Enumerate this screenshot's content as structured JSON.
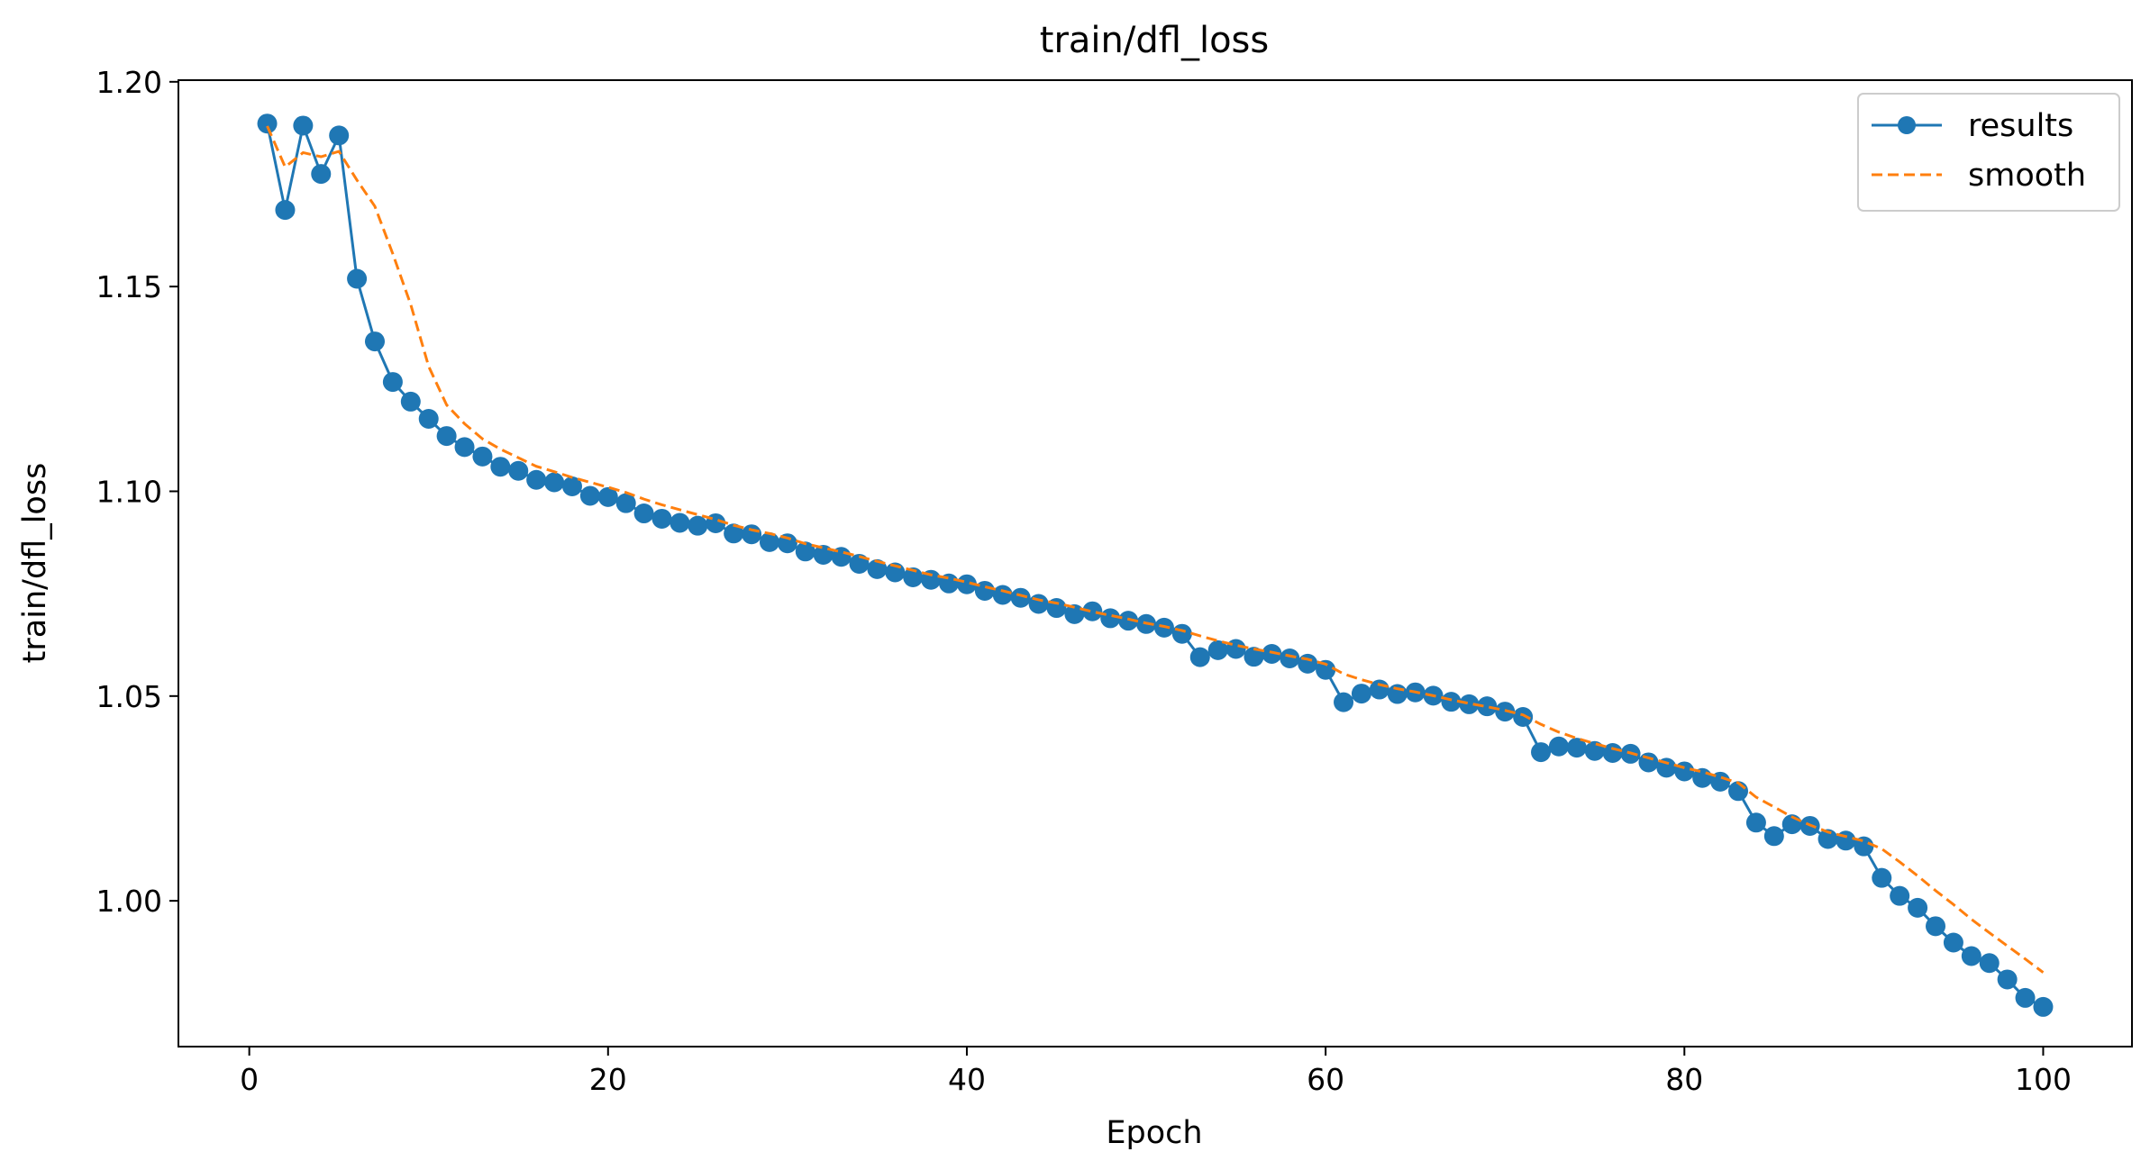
{
  "chart_data": {
    "type": "line",
    "title": "train/dfl_loss",
    "xlabel": "Epoch",
    "ylabel": "train/dfl_loss",
    "xlim": [
      -3.95,
      104.95
    ],
    "ylim": [
      0.9644,
      1.2004
    ],
    "xticks": [
      0,
      20,
      40,
      60,
      80,
      100
    ],
    "xtick_labels": [
      "0",
      "20",
      "40",
      "60",
      "80",
      "100"
    ],
    "yticks": [
      1.0,
      1.05,
      1.1,
      1.15,
      1.2
    ],
    "ytick_labels": [
      "1.00",
      "1.05",
      "1.10",
      "1.15",
      "1.20"
    ],
    "grid": false,
    "legend_position": "top-right",
    "series": [
      {
        "name": "results",
        "style": "solid line with circle markers",
        "color": "#1f77b4",
        "x": [
          1,
          2,
          3,
          4,
          5,
          6,
          7,
          8,
          9,
          10,
          11,
          12,
          13,
          14,
          15,
          16,
          17,
          18,
          19,
          20,
          21,
          22,
          23,
          24,
          25,
          26,
          27,
          28,
          29,
          30,
          31,
          32,
          33,
          34,
          35,
          36,
          37,
          38,
          39,
          40,
          41,
          42,
          43,
          44,
          45,
          46,
          47,
          48,
          49,
          50,
          51,
          52,
          53,
          54,
          55,
          56,
          57,
          58,
          59,
          60,
          61,
          62,
          63,
          64,
          65,
          66,
          67,
          68,
          69,
          70,
          71,
          72,
          73,
          74,
          75,
          76,
          77,
          78,
          79,
          80,
          81,
          82,
          83,
          84,
          85,
          86,
          87,
          88,
          89,
          90,
          91,
          92,
          93,
          94,
          95,
          96,
          97,
          98,
          99,
          100
        ],
        "y": [
          1.1898,
          1.1687,
          1.1893,
          1.1775,
          1.1869,
          1.1519,
          1.1366,
          1.1267,
          1.1219,
          1.1177,
          1.1135,
          1.1108,
          1.1085,
          1.106,
          1.105,
          1.1028,
          1.1022,
          1.1012,
          1.0989,
          1.0986,
          1.0971,
          1.0946,
          1.0933,
          1.0923,
          1.0916,
          1.0922,
          1.0897,
          1.0895,
          1.0876,
          1.0873,
          1.0853,
          1.0845,
          1.084,
          1.0823,
          1.081,
          1.0802,
          1.079,
          1.0784,
          1.0775,
          1.0773,
          1.0757,
          1.0747,
          1.074,
          1.0725,
          1.0715,
          1.07,
          1.0707,
          1.069,
          1.0684,
          1.0676,
          1.0667,
          1.0652,
          1.0595,
          1.0612,
          1.0615,
          1.0596,
          1.0603,
          1.0592,
          1.0579,
          1.0564,
          1.0485,
          1.0506,
          1.0516,
          1.0505,
          1.0509,
          1.0501,
          1.0486,
          1.048,
          1.0475,
          1.0462,
          1.0449,
          1.0363,
          1.0377,
          1.0374,
          1.0366,
          1.0361,
          1.0359,
          1.0338,
          1.0325,
          1.0316,
          1.03,
          1.0291,
          1.0268,
          1.0191,
          1.0158,
          1.0187,
          1.0183,
          1.0151,
          1.0147,
          1.0133,
          1.0056,
          1.0012,
          0.9983,
          0.9938,
          0.9898,
          0.9865,
          0.9848,
          0.9808,
          0.9763,
          0.9741
        ]
      },
      {
        "name": "smooth",
        "style": "dashed line",
        "color": "#ff7f0e",
        "x": [
          1,
          2,
          3,
          4,
          5,
          6,
          7,
          8,
          9,
          10,
          11,
          12,
          13,
          14,
          15,
          16,
          17,
          18,
          19,
          20,
          21,
          22,
          23,
          24,
          25,
          26,
          27,
          28,
          29,
          30,
          31,
          32,
          33,
          34,
          35,
          36,
          37,
          38,
          39,
          40,
          41,
          42,
          43,
          44,
          45,
          46,
          47,
          48,
          49,
          50,
          51,
          52,
          53,
          54,
          55,
          56,
          57,
          58,
          59,
          60,
          61,
          62,
          63,
          64,
          65,
          66,
          67,
          68,
          69,
          70,
          71,
          72,
          73,
          74,
          75,
          76,
          77,
          78,
          79,
          80,
          81,
          82,
          83,
          84,
          85,
          86,
          87,
          88,
          89,
          90,
          91,
          92,
          93,
          94,
          95,
          96,
          97,
          98,
          99,
          100
        ],
        "y": [
          1.1892,
          1.1792,
          1.1827,
          1.1817,
          1.183,
          1.176,
          1.1696,
          1.158,
          1.1456,
          1.1305,
          1.1211,
          1.1165,
          1.1128,
          1.1103,
          1.1082,
          1.1061,
          1.1048,
          1.1034,
          1.1022,
          1.101,
          1.0997,
          1.0981,
          1.0967,
          1.0955,
          1.0943,
          1.0931,
          1.0917,
          1.0906,
          1.0897,
          1.0886,
          1.0872,
          1.0862,
          1.0852,
          1.0841,
          1.0829,
          1.0818,
          1.0807,
          1.0796,
          1.0788,
          1.0778,
          1.0767,
          1.0757,
          1.0746,
          1.0735,
          1.0727,
          1.0717,
          1.0706,
          1.0697,
          1.0688,
          1.0678,
          1.067,
          1.066,
          1.0647,
          1.0635,
          1.0624,
          1.0615,
          1.0607,
          1.0598,
          1.059,
          1.0578,
          1.0554,
          1.054,
          1.0528,
          1.0518,
          1.051,
          1.0501,
          1.0491,
          1.0482,
          1.0474,
          1.0465,
          1.0454,
          1.0431,
          1.0412,
          1.0397,
          1.0384,
          1.0372,
          1.0361,
          1.0349,
          1.0337,
          1.0325,
          1.0315,
          1.0302,
          1.0288,
          1.0253,
          1.0229,
          1.0205,
          1.0185,
          1.0168,
          1.0157,
          1.0146,
          1.0127,
          1.0095,
          1.0061,
          1.0025,
          0.9991,
          0.9955,
          0.9922,
          0.989,
          0.9858,
          0.9825
        ]
      }
    ]
  }
}
